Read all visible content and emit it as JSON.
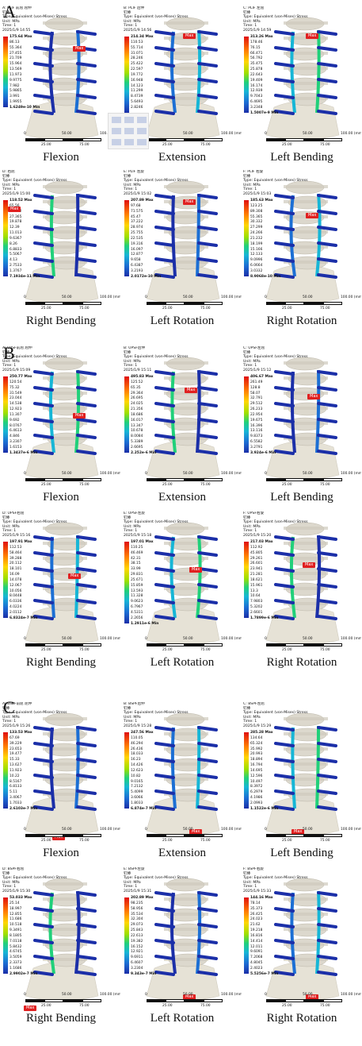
{
  "sections": [
    {
      "label": "A",
      "panels": [
        {
          "header": [
            "A: PLIF 前屈 屈伸",
            "钉棒",
            "Type: Equivalent (von-Mises) Stress",
            "Unit: MPa",
            "Time: 1",
            "2025/1/9 14:55"
          ],
          "max": "175.64 Max",
          "values": [
            "86.13",
            "55.364",
            "27.455",
            "21.709",
            "15.964",
            "13.569",
            "11.973",
            "9.9775",
            "7.982",
            "5.9865",
            "3.991",
            "1.9955"
          ],
          "min": "1.6249e-10 Min",
          "scale_top": [
            "0",
            "50.00",
            "100.00 (mm)"
          ],
          "scale_bottom": [
            "25.00",
            "75.00"
          ],
          "caption": "Flexion"
        },
        {
          "header": [
            "B: PLIF 后伸",
            "钉棒",
            "Type: Equivalent (von-Mises) Stress",
            "Unit: MPa",
            "Time: 1",
            "2025/1/9 14:56"
          ],
          "max": "214.34 Max",
          "values": [
            "110.53",
            "55.714",
            "31.071",
            "28.246",
            "25.422",
            "22.597",
            "19.772",
            "16.948",
            "14.123",
            "11.299",
            "8.4739",
            "5.6493",
            "2.8246"
          ],
          "min": "",
          "scale_top": [
            "0",
            "50.00",
            "100.00 (mm)"
          ],
          "scale_bottom": [
            "25.00",
            "75.00"
          ],
          "caption": "Extension"
        },
        {
          "header": [
            "C: PLIF 左屈",
            "钉棒",
            "Type: Equivalent (von-Mises) Stress",
            "Unit: MPa",
            "Time: 1",
            "2025/1/9 14:59"
          ],
          "max": "313.26 Max",
          "values": [
            "178.46",
            "76.15",
            "66.471",
            "56.792",
            "35.475",
            "25.878",
            "22.643",
            "19.409",
            "16.174",
            "12.939",
            "9.7043",
            "6.4695",
            "3.2348"
          ],
          "min": "1.5007e-9 Min",
          "scale_top": [
            "0",
            "50.00",
            "100.00 (mm)"
          ],
          "scale_bottom": [
            "25.00",
            "75.00"
          ],
          "caption": "Left Bending"
        },
        {
          "header": [
            "D: 右屈",
            "钉棒",
            "Type: Equivalent (von-Mises) Stress",
            "Unit: MPa",
            "Time: 1",
            "2025/1/9 15:00"
          ],
          "max": "118.52 Max",
          "values": [
            "65.56",
            "46.462",
            "27.365",
            "19.878",
            "12.39",
            "11.013",
            "9.6367",
            "8.26",
            "6.8833",
            "5.5067",
            "4.13",
            "2.7533",
            "1.3767"
          ],
          "min": "7.1934e-11 Min",
          "scale_top": [
            "0",
            "50.00",
            "100.00 (mm)"
          ],
          "scale_bottom": [
            "25.00",
            "75.00"
          ],
          "caption": "Right Bending"
        },
        {
          "header": [
            "E: PLIF 左旋",
            "钉棒",
            "Type: Equivalent (von-Mises) Stress",
            "Unit: MPa",
            "Time: 1",
            "2025/1/9 15:02"
          ],
          "max": "207.89 Max",
          "values": [
            "97.68",
            "71.575",
            "45.47",
            "37.222",
            "28.974",
            "25.755",
            "22.535",
            "19.316",
            "16.097",
            "12.877",
            "9.658",
            "6.4387",
            "3.2193"
          ],
          "min": "2.0172e-10 Min",
          "scale_top": [
            "0",
            "50.00",
            "100.00 (mm)"
          ],
          "scale_bottom": [
            "25.00",
            "75.00"
          ],
          "caption": "Left Rotation"
        },
        {
          "header": [
            "F: PLIF 右旋",
            "钉棒",
            "Type: Equivalent (von-Mises) Stress",
            "Unit: MPa",
            "Time: 1",
            "2025/1/9 15:03"
          ],
          "max": "185.63 Max",
          "values": [
            "123.25",
            "89.308",
            "55.365",
            "30.332",
            "27.299",
            "24.266",
            "21.232",
            "18.199",
            "15.166",
            "12.133",
            "9.0996",
            "6.0664",
            "3.0332"
          ],
          "min": "8.9068e-10 Min",
          "scale_top": [
            "0",
            "50.00",
            "100.00 (mm)"
          ],
          "scale_bottom": [
            "25.00",
            "75.00"
          ],
          "caption": "Right Rotation"
        }
      ]
    },
    {
      "label": "B",
      "panels": [
        {
          "header": [
            "A: UPSF前屈 屈伸",
            "钉棒",
            "Type: Equivalent (von-Mises) Stress",
            "Unit: MPa",
            "Time: 1",
            "2025/1/9 15:09"
          ],
          "max": "250.77 Max",
          "values": [
            "120.54",
            "75.32",
            "31.549",
            "23.044",
            "14.538",
            "12.923",
            "11.307",
            "9.692",
            "8.0767",
            "6.4613",
            "4.846",
            "3.2307",
            "1.6153"
          ],
          "min": "1.3437e-6 Min",
          "scale_top": [
            "0",
            "50.00",
            "100.00 (mm)"
          ],
          "scale_bottom": [
            "25.00",
            "75.00"
          ],
          "caption": "Flexion"
        },
        {
          "header": [
            "B: UPSF后伸",
            "钉棒",
            "Type: Equivalent (von-Mises) Stress",
            "Unit: MPa",
            "Time: 1",
            "2025/1/9 15:11"
          ],
          "max": "495.83 Max",
          "values": [
            "125.52",
            "65.35",
            "29.364",
            "26.695",
            "24.025",
            "21.356",
            "18.686",
            "16.017",
            "13.347",
            "10.678",
            "8.0084",
            "5.3389",
            "2.6695"
          ],
          "min": "2.252e-6 Min",
          "scale_top": [
            "0",
            "50.00",
            "100.00 (mm)"
          ],
          "scale_bottom": [
            "25.00",
            "75.00"
          ],
          "caption": "Extension"
        },
        {
          "header": [
            "C: UPSF左屈",
            "钉棒",
            "Type: Equivalent (von-Mises) Stress",
            "Unit: MPa",
            "Time: 1",
            "2025/1/9 15:12"
          ],
          "max": "406.67 Max",
          "values": [
            "261.49",
            "128.8",
            "58.07",
            "32.791",
            "29.512",
            "26.233",
            "22.954",
            "19.675",
            "16.396",
            "13.116",
            "9.8373",
            "6.5582",
            "3.2791"
          ],
          "min": "3.924e-6 Min",
          "scale_top": [
            "0",
            "50.00",
            "100.00 (mm)"
          ],
          "scale_bottom": [
            "25.00",
            "75.00"
          ],
          "caption": "Left Bending"
        },
        {
          "header": [
            "D: UPSF右屈",
            "钉棒",
            "Type: Equivalent (von-Mises) Stress",
            "Unit: MPa",
            "Time: 1",
            "2025/1/9 15:16"
          ],
          "max": "197.91 Max",
          "values": [
            "112.53",
            "58.464",
            "39.288",
            "20.112",
            "18.101",
            "16.09",
            "14.078",
            "12.067",
            "10.056",
            "8.0448",
            "6.0336",
            "4.0224",
            "2.0112"
          ],
          "min": "6.8324e-7 Min",
          "scale_top": [
            "0",
            "50.00",
            "100.00 (mm)"
          ],
          "scale_bottom": [
            "25.00",
            "75.00"
          ],
          "caption": "Right Bending"
        },
        {
          "header": [
            "E: UPSF左旋",
            "钉棒",
            "Type: Equivalent (von-Mises) Stress",
            "Unit: MPa",
            "Time: 1",
            "2025/1/9 15:18"
          ],
          "max": "197.01 Max",
          "values": [
            "110.25",
            "46.469",
            "42.31",
            "38.15",
            "33.99",
            "29.831",
            "25.671",
            "15.859",
            "13.593",
            "11.328",
            "9.0623",
            "6.7967",
            "4.5311",
            "2.2656"
          ],
          "min": "1.2911e-6 Min",
          "scale_top": [
            "0",
            "50.00",
            "100.00 (mm)"
          ],
          "scale_bottom": [
            "25.00",
            "75.00"
          ],
          "caption": "Left Rotation"
        },
        {
          "header": [
            "F: UPSF右旋",
            "钉棒",
            "Type: Equivalent (von-Mises) Stress",
            "Unit: MPa",
            "Time: 1",
            "2025/1/9 15:20"
          ],
          "max": "217.03 Max",
          "values": [
            "112.92",
            "45.805",
            "29.261",
            "26.601",
            "23.941",
            "21.281",
            "18.621",
            "15.961",
            "13.3",
            "10.64",
            "7.9803",
            "5.3202",
            "2.6601"
          ],
          "min": "1.7899e-6 Min",
          "scale_top": [
            "0",
            "50.00",
            "100.00 (mm)"
          ],
          "scale_bottom": [
            "25.00",
            "75.00"
          ],
          "caption": "Right Rotation"
        }
      ]
    },
    {
      "label": "C",
      "panels": [
        {
          "header": [
            "A: BSPF前屈 屈伸",
            "钉棒",
            "Type: Equivalent (von-Mises) Stress",
            "Unit: MPa",
            "Time: 1",
            "2025/1/9 15:26"
          ],
          "max": "133.53 Max",
          "values": [
            "67.69",
            "39.229",
            "23.653",
            "19.477",
            "15.33",
            "13.627",
            "11.923",
            "10.22",
            "8.5167",
            "6.8133",
            "5.11",
            "3.4067",
            "1.7033"
          ],
          "min": "2.6103e-7 Min",
          "scale_top": [
            "0",
            "50.00",
            "100.00 (mm)"
          ],
          "scale_bottom": [
            "25.00",
            "75.00"
          ],
          "caption": "Flexion"
        },
        {
          "header": [
            "B: BSPF后伸",
            "钉棒",
            "Type: Equivalent (von-Mises) Stress",
            "Unit: MPa",
            "Time: 1",
            "2025/1/9 15:28"
          ],
          "max": "247.56 Max",
          "values": [
            "110.05",
            "46.294",
            "26.436",
            "18.033",
            "16.23",
            "14.426",
            "12.623",
            "10.82",
            "9.0165",
            "7.2132",
            "5.4099",
            "3.6066",
            "1.8033"
          ],
          "min": "6.874e-7 Min",
          "scale_top": [
            "0",
            "50.00",
            "100.00 (mm)"
          ],
          "scale_bottom": [
            "25.00",
            "75.00"
          ],
          "caption": "Extension"
        },
        {
          "header": [
            "C: BSPF左屈",
            "钉棒",
            "Type: Equivalent (von-Mises) Stress",
            "Unit: MPa",
            "Time: 1",
            "2025/1/9 15:29"
          ],
          "max": "285.28 Max",
          "values": [
            "134.64",
            "65.324",
            "35.992",
            "20.993",
            "18.894",
            "16.794",
            "14.695",
            "12.596",
            "10.497",
            "8.3972",
            "6.2979",
            "4.1986",
            "2.0993"
          ],
          "min": "1.1522e-6 Min",
          "scale_top": [
            "0",
            "50.00",
            "100.00 (mm)"
          ],
          "scale_bottom": [
            "25.00",
            "75.00"
          ],
          "caption": "Left Bending"
        },
        {
          "header": [
            "D: BSPF右屈",
            "钉棒",
            "Type: Equivalent (von-Mises) Stress",
            "Unit: MPa",
            "Time: 1",
            "2025/1/9 15:30"
          ],
          "max": "53.033 Max",
          "values": [
            "25.14",
            "18.997",
            "12.855",
            "11.686",
            "10.518",
            "9.3491",
            "8.1805",
            "7.0118",
            "5.8432",
            "4.6745",
            "3.5059",
            "2.3373",
            "1.1686"
          ],
          "min": "2.9902e-7 Min",
          "scale_top": [
            "0",
            "50.00",
            "100.00 (mm)"
          ],
          "scale_bottom": [
            "25.00",
            "75.00"
          ],
          "caption": "Right Bending"
        },
        {
          "header": [
            "E: BSPF左旋",
            "钉棒",
            "Type: Equivalent (von-Mises) Stress",
            "Unit: MPa",
            "Time: 1",
            "2025/1/9 15:31"
          ],
          "max": "202.89 Max",
          "values": [
            "98.235",
            "58.956",
            "35.534",
            "32.304",
            "29.073",
            "25.843",
            "22.613",
            "19.382",
            "16.152",
            "12.921",
            "9.6911",
            "6.4607",
            "3.2304"
          ],
          "min": "9.343e-7 Min",
          "scale_top": [
            "0",
            "50.00",
            "100.00 (mm)"
          ],
          "scale_bottom": [
            "25.00",
            "75.00"
          ],
          "caption": "Left Rotation"
        },
        {
          "header": [
            "F: BSPF右旋",
            "钉棒",
            "Type: Equivalent (von-Mises) Stress",
            "Unit: MPa",
            "Time: 1",
            "2025/1/9 15:33"
          ],
          "max": "144.16 Max",
          "values": [
            "78.14",
            "35.373",
            "26.425",
            "24.023",
            "21.62",
            "19.218",
            "16.816",
            "14.414",
            "12.011",
            "9.6091",
            "7.2068",
            "4.8045",
            "2.4023"
          ],
          "min": "5.5256e-7 Min",
          "scale_top": [
            "0",
            "50.00",
            "100.00 (mm)"
          ],
          "scale_bottom": [
            "25.00",
            "75.00"
          ],
          "caption": "Right Rotation"
        }
      ]
    }
  ],
  "max_tag": "Max",
  "min_tag": "Min",
  "inset_label": "Min",
  "colors": {
    "max_tag": "#e02020",
    "rod": "#1b2fa8",
    "vertebra": "#d9d6cc"
  }
}
